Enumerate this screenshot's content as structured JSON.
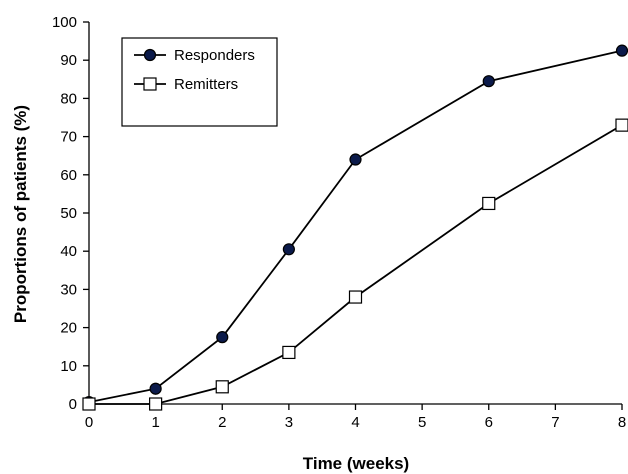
{
  "chart_data": {
    "type": "line",
    "title": "",
    "xlabel": "Time (weeks)",
    "ylabel": "Proportions of patients (%)",
    "xlim": [
      0,
      8
    ],
    "ylim": [
      0,
      100
    ],
    "xticks": [
      0,
      1,
      2,
      3,
      4,
      5,
      6,
      7,
      8
    ],
    "yticks": [
      0,
      10,
      20,
      30,
      40,
      50,
      60,
      70,
      80,
      90,
      100
    ],
    "grid": false,
    "legend_position": "top-left",
    "series": [
      {
        "name": "Responders",
        "marker": "filled-circle",
        "marker_color": "#0b1a4a",
        "x": [
          0,
          1,
          2,
          3,
          4,
          6,
          8
        ],
        "y": [
          0.5,
          4,
          17.5,
          40.5,
          64,
          84.5,
          92.5
        ]
      },
      {
        "name": "Remitters",
        "marker": "open-square",
        "marker_color": "#ffffff",
        "x": [
          0,
          1,
          2,
          3,
          4,
          6,
          8
        ],
        "y": [
          0,
          0,
          4.5,
          13.5,
          28,
          52.5,
          73
        ]
      }
    ]
  }
}
